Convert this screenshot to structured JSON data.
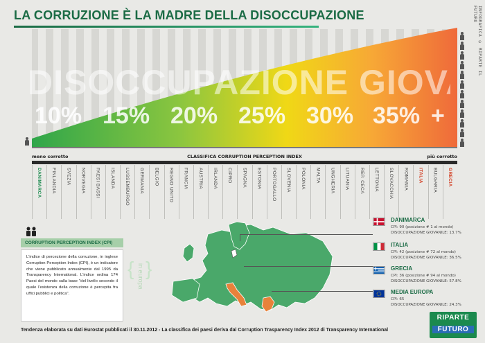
{
  "title": "LA CORRUZIONE È LA MADRE DELLA DISOCCUPAZIONE",
  "credit": "INFOGRAFICA © RIPARTE IL FUTURO",
  "big_word": "DISOCCUPAZIONE GIOVANILE",
  "percent_labels": [
    "10%",
    "15%",
    "20%",
    "25%",
    "30%",
    "35%",
    "+"
  ],
  "scale": {
    "left_label": "meno corrotto",
    "center_label": "CLASSIFICA CORRUPTION PERCEPTION INDEX",
    "right_label": "più corrotto"
  },
  "countries": [
    {
      "name": "DANIMARCA",
      "highlight": "green"
    },
    {
      "name": "FINLANDIA",
      "highlight": ""
    },
    {
      "name": "SVEZIA",
      "highlight": ""
    },
    {
      "name": "NORVEGIA",
      "highlight": ""
    },
    {
      "name": "PAESI BASSI",
      "highlight": ""
    },
    {
      "name": "ISLANDA",
      "highlight": ""
    },
    {
      "name": "LUSSEMBURGO",
      "highlight": ""
    },
    {
      "name": "GERMANIA",
      "highlight": ""
    },
    {
      "name": "BELGIO",
      "highlight": ""
    },
    {
      "name": "REGNO UNITO",
      "highlight": ""
    },
    {
      "name": "FRANCIA",
      "highlight": ""
    },
    {
      "name": "AUSTRIA",
      "highlight": ""
    },
    {
      "name": "IRLANDA",
      "highlight": ""
    },
    {
      "name": "CIPRO",
      "highlight": ""
    },
    {
      "name": "SPAGNA",
      "highlight": ""
    },
    {
      "name": "ESTONIA",
      "highlight": ""
    },
    {
      "name": "PORTOGALLO",
      "highlight": ""
    },
    {
      "name": "SLOVENIA",
      "highlight": ""
    },
    {
      "name": "POLONIA",
      "highlight": ""
    },
    {
      "name": "MALTA",
      "highlight": ""
    },
    {
      "name": "UNGHERIA",
      "highlight": ""
    },
    {
      "name": "LITUANIA",
      "highlight": ""
    },
    {
      "name": "REP. CECA",
      "highlight": ""
    },
    {
      "name": "LETTONIA",
      "highlight": ""
    },
    {
      "name": "SLOVACCHIA",
      "highlight": ""
    },
    {
      "name": "ROMANIA",
      "highlight": ""
    },
    {
      "name": "ITALIA",
      "highlight": "red"
    },
    {
      "name": "BULGARIA",
      "highlight": ""
    },
    {
      "name": "GRECIA",
      "highlight": "red"
    }
  ],
  "cpi": {
    "title": "CORRUPTION PERCEPTION INDEX (CPI)",
    "text": "L'indice di percezione della corruzione, in inglese Corruption Perception Index (CPI), è un indicatore che viene pubblicato annualmente dal 1995 da Transparency International. L'indice ordina 174 Paesi del mondo sulla base \"del livello secondo il quale l'esistenza della corruzione è percepita fra uffici pubblici e politica\"."
  },
  "in_europa": "in europa",
  "legend": [
    {
      "name": "DANIMARCA",
      "cpi": "CPI: 90 (posizione # 1 al mondo)",
      "unemployment": "DISOCCUPAZIONE GIOVANILE: 13.7%",
      "flag": "denmark"
    },
    {
      "name": "ITALIA",
      "cpi": "CPI: 42 (posizione # 72 al mondo)",
      "unemployment": "DISOCCUPAZIONE GIOVANILE: 36.5%",
      "flag": "italy"
    },
    {
      "name": "GRECIA",
      "cpi": "CPI: 36 (posizione # 94 al mondo)",
      "unemployment": "DISOCCUPAZIONE GIOVANILE: 57.8%",
      "flag": "greece"
    },
    {
      "name": "MEDIA EUROPA",
      "cpi": "CPI: 65",
      "unemployment": "DISOCCUPAZIONE GIOVANILE: 24.3%",
      "flag": "eu"
    }
  ],
  "footer": "Tendenza elaborata su dati Eurostat pubblicati il 30.11.2012  -  La classifica dei paesi deriva dal Corruption Trasparency Index 2012 di Transparency International",
  "logo": {
    "line1": "RIPARTE",
    "line2": "FUTURO"
  },
  "colors": {
    "green": "#1b8a4e",
    "dark_green": "#1b6b45",
    "red": "#d13a1e",
    "highlight_orange": "#e8823a"
  }
}
